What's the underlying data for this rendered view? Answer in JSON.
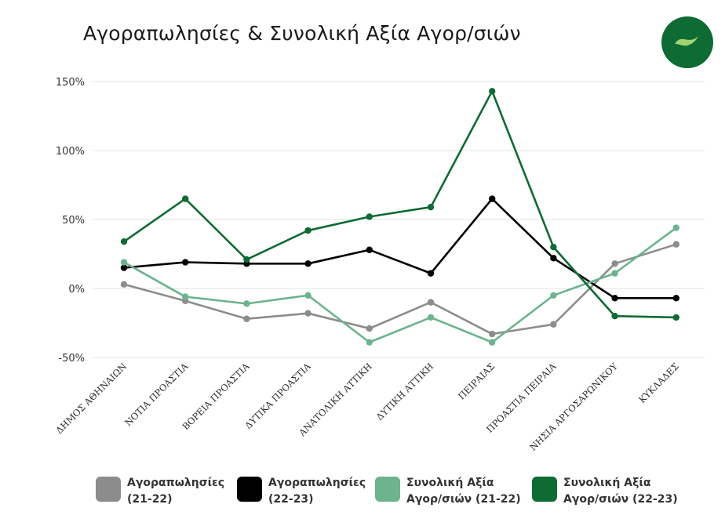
{
  "chart_data": {
    "type": "line",
    "title": "Αγοραπωλησίες & Συνολική Αξία Αγορ/σιών",
    "xlabel": "",
    "ylabel": "",
    "ylim": [
      -50,
      150
    ],
    "yticks": [
      150,
      100,
      50,
      0,
      -50
    ],
    "ytick_labels": [
      "150%",
      "100%",
      "50%",
      "0%",
      "-50%"
    ],
    "grid": true,
    "legend_position": "bottom",
    "categories": [
      "ΔΗΜΟΣ ΑΘΗΝΑΙΩΝ",
      "ΝΟΤΙΑ ΠΡΟΑΣΤΙΑ",
      "ΒΟΡΕΙΑ ΠΡΟΑΣΤΙΑ",
      "ΔΥΤΙΚΑ ΠΡΟΑΣΤΙΑ",
      "ΑΝΑΤΟΛΙΚΗ ΑΤΤΙΚΗ",
      "ΔΥΤΙΚΗ ΑΤΤΙΚΗ",
      "ΠΕΙΡΑΙΑΣ",
      "ΠΡΟΑΣΤΙΑ ΠΕΙΡΑΙΑ",
      "ΝΗΣΙΑ ΑΡΓΟΣΑΡΩΝΙΚΟΥ",
      "ΚΥΚΛΑΔΕΣ"
    ],
    "series": [
      {
        "name": "Αγοραπωλησίες\n(21-22)",
        "color": "#8c8c8c",
        "values": [
          3,
          -9,
          -22,
          -18,
          -29,
          -10,
          -33,
          -26,
          18,
          32
        ]
      },
      {
        "name": "Αγοραπωλησίες\n(22-23)",
        "color": "#000000",
        "values": [
          15,
          19,
          18,
          18,
          28,
          11,
          65,
          22,
          -7,
          -7
        ]
      },
      {
        "name": "Συνολική Αξία\nΑγορ/σιών (21-22)",
        "color": "#6db38e",
        "values": [
          19,
          -6,
          -11,
          -5,
          -39,
          -21,
          -39,
          -5,
          11,
          44
        ]
      },
      {
        "name": "Συνολική Αξία\nΑγορ/σιών (22-23)",
        "color": "#0e6b33",
        "values": [
          34,
          65,
          21,
          42,
          52,
          59,
          143,
          30,
          -20,
          -21
        ]
      }
    ]
  },
  "logo": {
    "name": "leaf-logo-icon",
    "color": "#0e6b33"
  }
}
